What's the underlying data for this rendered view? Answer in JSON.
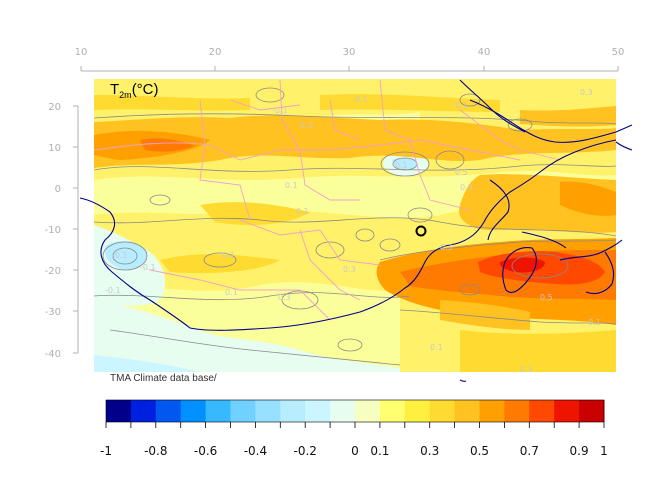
{
  "map": {
    "title_main": "T",
    "title_sub": "2m",
    "title_unit": "(°C)",
    "credit": "TMA Climate data base/",
    "lon_ticks": [
      "10",
      "20",
      "30",
      "40",
      "50"
    ],
    "lat_ticks": [
      "20",
      "10",
      "0",
      "-10",
      "-20",
      "-30",
      "-40"
    ],
    "contour_labels": [
      "-0.1",
      "0.1",
      "0.1",
      "0.3",
      "0.1",
      "-0.1",
      "0.1",
      "0.3",
      "0.1",
      "-0.1",
      "0.3",
      "-0.1",
      "0.1",
      "0.3",
      "0.3",
      "0.5",
      "0.1",
      "-0.1",
      "0.5",
      "0.1",
      "0.1",
      "0.3"
    ],
    "colors": {
      "coast": "#00008b",
      "borders": "#f0a0c8",
      "contours": "#8a8a8a",
      "axis": "#b0b0b0",
      "marker": "#000000"
    }
  },
  "colorbar": {
    "colors": [
      "#00008b",
      "#0020e0",
      "#0058f0",
      "#0090ff",
      "#38b8ff",
      "#70d0ff",
      "#98e0ff",
      "#b8ecff",
      "#ccf6ff",
      "#e6fdf0",
      "#f6ffc0",
      "#ffff70",
      "#fff040",
      "#ffda30",
      "#ffc220",
      "#ffa000",
      "#ff7a00",
      "#ff4800",
      "#ee1400",
      "#c80000"
    ],
    "labels": [
      "-1",
      "-0.8",
      "-0.6",
      "-0.4",
      "-0.2",
      "0",
      "0.1",
      "0.3",
      "0.5",
      "0.7",
      "0.9",
      "1"
    ]
  }
}
